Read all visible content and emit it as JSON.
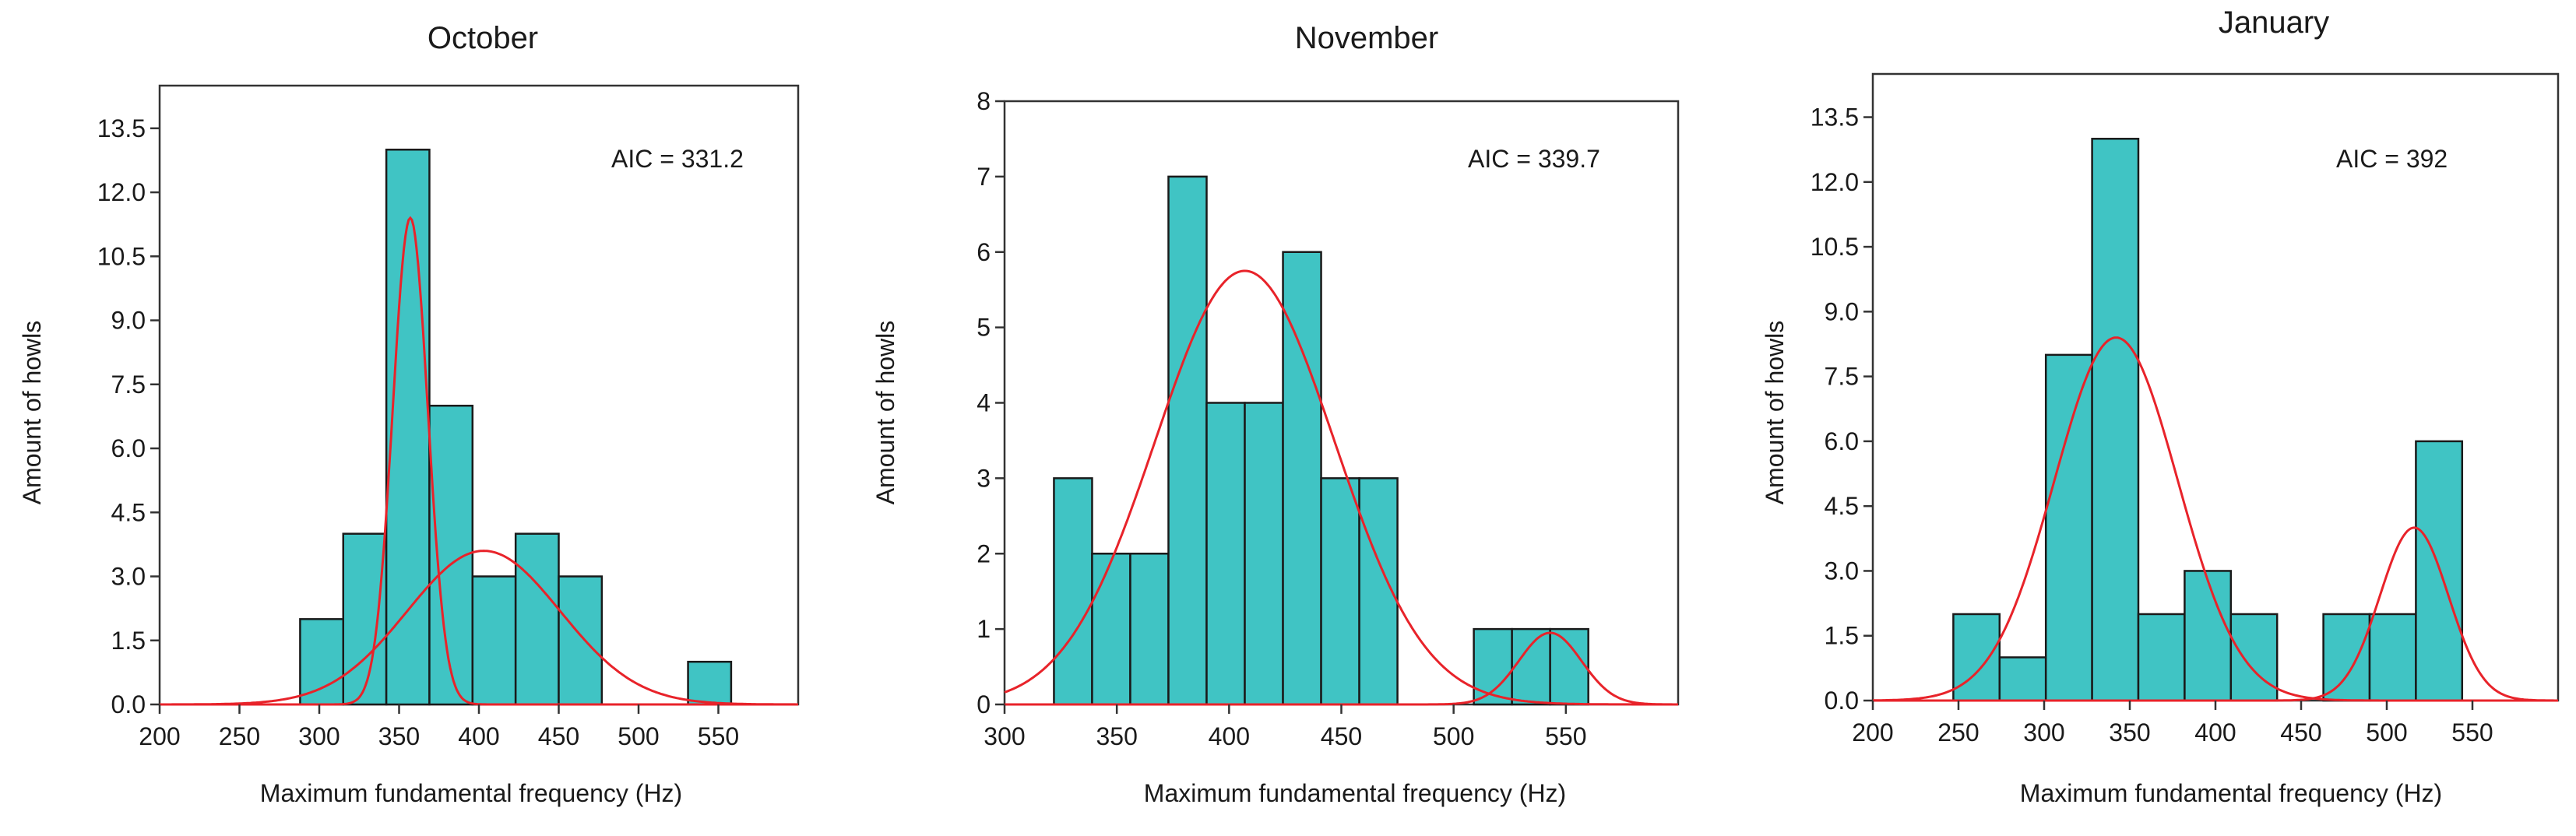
{
  "chart_data": [
    {
      "type": "bar",
      "title": "October",
      "xlabel": "Maximum fundamental frequency (Hz)",
      "ylabel": "Amount of howls",
      "annotation": "AIC = 331.2",
      "xlim": [
        200,
        600
      ],
      "ylim": [
        0,
        14.5
      ],
      "x_ticks": [
        "200",
        "250",
        "300",
        "350",
        "400",
        "450",
        "500",
        "550"
      ],
      "y_ticks": [
        "0.0",
        "1.5",
        "3.0",
        "4.5",
        "6.0",
        "7.5",
        "9.0",
        "10.5",
        "12.0",
        "13.5"
      ],
      "bin_width": 27,
      "bins": [
        {
          "start": 288,
          "value": 2
        },
        {
          "start": 315,
          "value": 4
        },
        {
          "start": 342,
          "value": 13
        },
        {
          "start": 369,
          "value": 7
        },
        {
          "start": 396,
          "value": 3
        },
        {
          "start": 423,
          "value": 4
        },
        {
          "start": 450,
          "value": 3
        },
        {
          "start": 531,
          "value": 1
        }
      ],
      "curves": [
        {
          "mean": 357,
          "sd": 11,
          "peak": 11.4
        },
        {
          "mean": 403,
          "sd": 48,
          "peak": 3.6
        }
      ]
    },
    {
      "type": "bar",
      "title": "November",
      "xlabel": "Maximum fundamental frequency (Hz)",
      "ylabel": "Amount of howls",
      "annotation": "AIC = 339.7",
      "xlim": [
        300,
        600
      ],
      "ylim": [
        0,
        8
      ],
      "x_ticks": [
        "300",
        "350",
        "400",
        "450",
        "500",
        "550"
      ],
      "y_ticks": [
        "0",
        "1",
        "2",
        "3",
        "4",
        "5",
        "6",
        "7",
        "8"
      ],
      "bin_width": 17,
      "bins": [
        {
          "start": 322,
          "value": 3
        },
        {
          "start": 339,
          "value": 2
        },
        {
          "start": 356,
          "value": 2
        },
        {
          "start": 373,
          "value": 7
        },
        {
          "start": 390,
          "value": 4
        },
        {
          "start": 407,
          "value": 4
        },
        {
          "start": 424,
          "value": 6
        },
        {
          "start": 441,
          "value": 3
        },
        {
          "start": 458,
          "value": 3
        },
        {
          "start": 509,
          "value": 1
        },
        {
          "start": 526,
          "value": 1
        },
        {
          "start": 543,
          "value": 1
        }
      ],
      "curves": [
        {
          "mean": 407,
          "sd": 40,
          "peak": 5.75
        },
        {
          "mean": 543,
          "sd": 14,
          "peak": 0.95
        }
      ]
    },
    {
      "type": "bar",
      "title": "January",
      "xlabel": "Maximum fundamental frequency (Hz)",
      "ylabel": "Amount of howls",
      "annotation": "AIC = 392",
      "xlim": [
        200,
        600
      ],
      "ylim": [
        0,
        14.5
      ],
      "x_ticks": [
        "200",
        "250",
        "300",
        "350",
        "400",
        "450",
        "500",
        "550"
      ],
      "y_ticks": [
        "0.0",
        "1.5",
        "3.0",
        "4.5",
        "6.0",
        "7.5",
        "9.0",
        "10.5",
        "12.0",
        "13.5"
      ],
      "bin_width": 27,
      "bins": [
        {
          "start": 247,
          "value": 2
        },
        {
          "start": 274,
          "value": 1
        },
        {
          "start": 301,
          "value": 8
        },
        {
          "start": 328,
          "value": 13
        },
        {
          "start": 355,
          "value": 2
        },
        {
          "start": 382,
          "value": 3
        },
        {
          "start": 409,
          "value": 2
        },
        {
          "start": 463,
          "value": 2
        },
        {
          "start": 490,
          "value": 2
        },
        {
          "start": 517,
          "value": 6
        }
      ],
      "curves": [
        {
          "mean": 342,
          "sd": 36,
          "peak": 8.4
        },
        {
          "mean": 516,
          "sd": 20,
          "peak": 4.0
        }
      ]
    }
  ],
  "colors": {
    "bar_fill": "#40C4C4",
    "bar_stroke": "#1a1a1a",
    "curve": "#E8232A"
  }
}
